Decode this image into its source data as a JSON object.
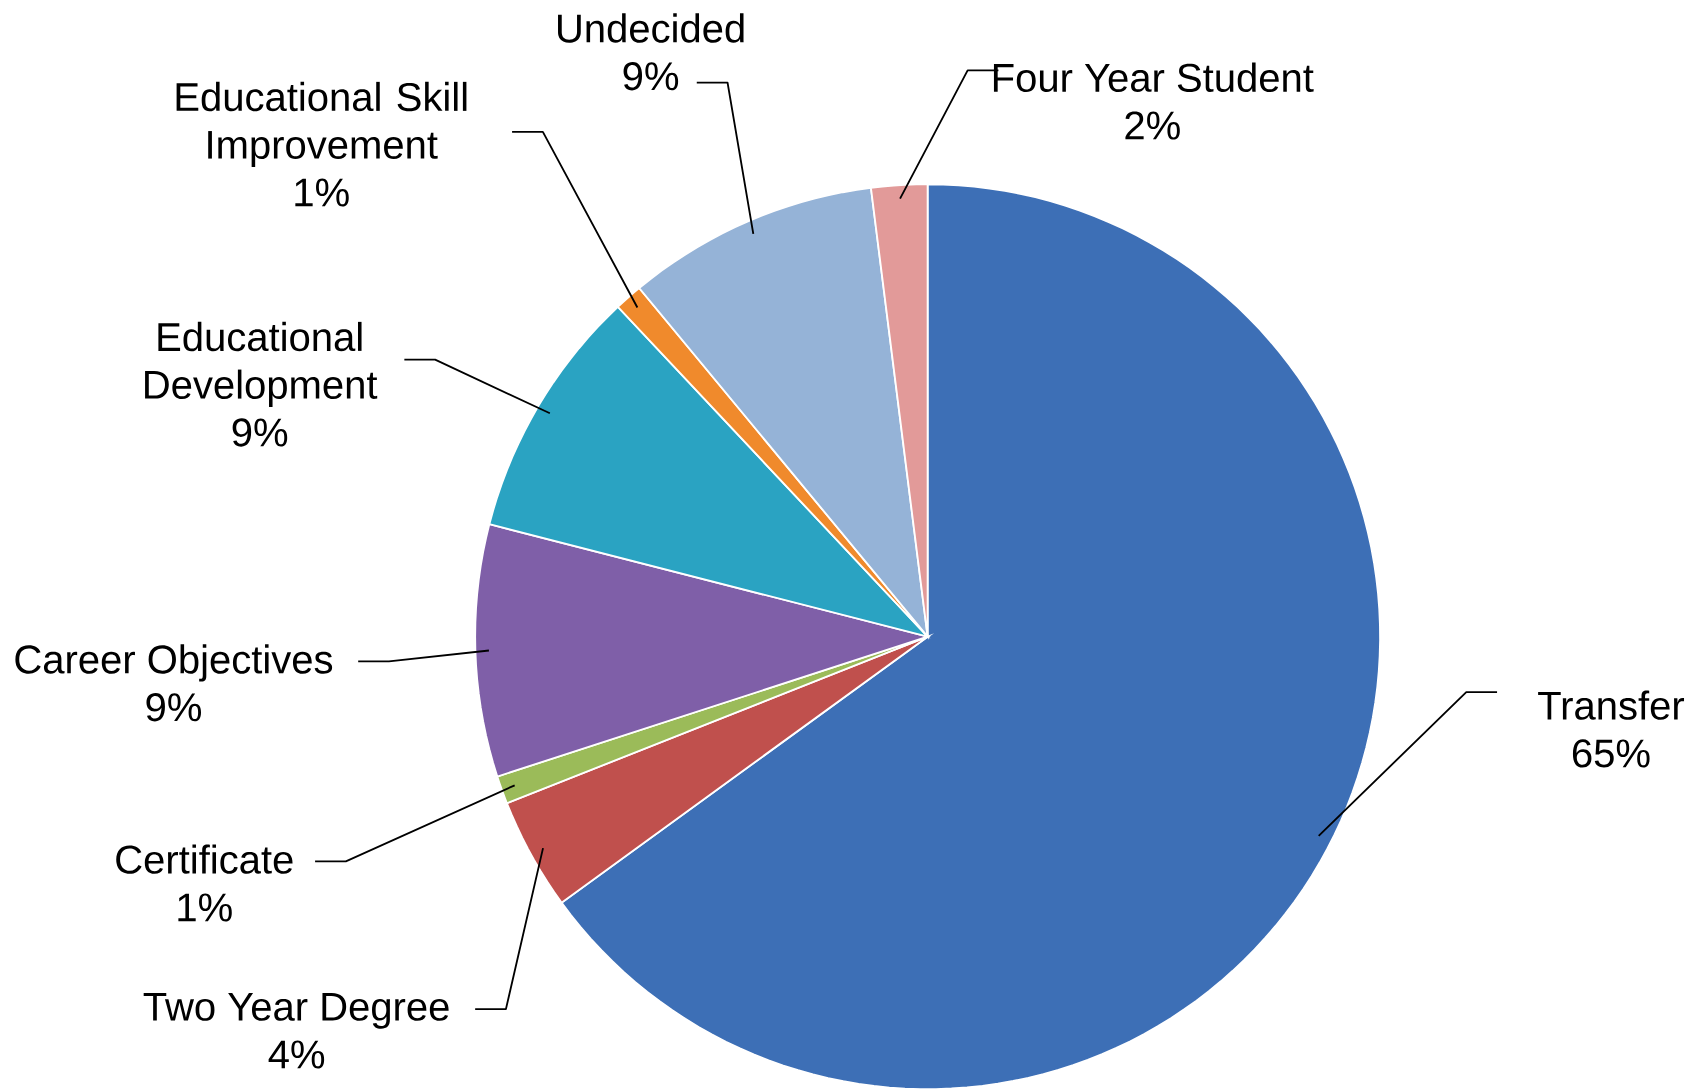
{
  "chart_data": {
    "type": "pie",
    "categories": [
      "Transfer",
      "Two Year Degree",
      "Certificate",
      "Career Objectives",
      "Educational Development",
      "Educational Skill Improvement",
      "Undecided",
      "Four Year Student"
    ],
    "values": [
      65,
      4,
      1,
      9,
      9,
      1,
      9,
      2
    ],
    "value_labels": [
      "65%",
      "4%",
      "1%",
      "9%",
      "9%",
      "1%",
      "9%",
      "2%"
    ],
    "colors": [
      "#3d6fb6",
      "#c0504d",
      "#9bbb59",
      "#7f5fa8",
      "#2aa3c2",
      "#f08a2c",
      "#95b3d7",
      "#e29a99"
    ]
  }
}
